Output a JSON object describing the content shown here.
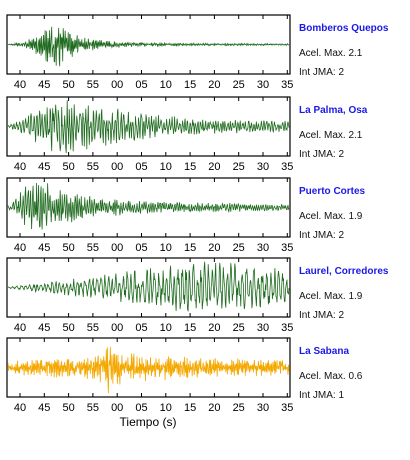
{
  "figure": {
    "xlabel": "Tiempo (s)"
  },
  "chart_data": [
    {
      "type": "line",
      "station": "Bomberos Quepos",
      "accel_label": "Acel. Max. 2.1",
      "intensity_label": "Int JMA: 2",
      "color": "#1f6b1f",
      "x_ticks": [
        "40",
        "45",
        "50",
        "55",
        "00",
        "05",
        "10",
        "15",
        "20",
        "25",
        "30",
        "35"
      ],
      "envelope_x": [
        0,
        3,
        5,
        7,
        9,
        12,
        14,
        16,
        20,
        25,
        30,
        40,
        55
      ],
      "envelope_y": [
        0.01,
        0.08,
        0.25,
        0.55,
        0.9,
        0.55,
        0.35,
        0.22,
        0.12,
        0.08,
        0.06,
        0.04,
        0.03
      ],
      "seed": 11,
      "period": 0.35
    },
    {
      "type": "line",
      "station": "La Palma, Osa",
      "accel_label": "Acel. Max. 2.1",
      "intensity_label": "Int JMA: 2",
      "color": "#1f6b1f",
      "x_ticks": [
        "40",
        "45",
        "50",
        "55",
        "00",
        "05",
        "10",
        "15",
        "20",
        "25",
        "30",
        "35"
      ],
      "envelope_x": [
        0,
        3,
        6,
        9,
        12,
        16,
        20,
        25,
        30,
        35,
        40,
        48,
        55
      ],
      "envelope_y": [
        0.05,
        0.3,
        0.6,
        0.85,
        0.95,
        0.8,
        0.65,
        0.5,
        0.4,
        0.3,
        0.25,
        0.22,
        0.2
      ],
      "seed": 23,
      "period": 0.55
    },
    {
      "type": "line",
      "station": "Puerto Cortes",
      "accel_label": "Acel. Max. 1.9",
      "intensity_label": "Int JMA: 2",
      "color": "#1f6b1f",
      "x_ticks": [
        "40",
        "45",
        "50",
        "55",
        "00",
        "05",
        "10",
        "15",
        "20",
        "25",
        "30",
        "35"
      ],
      "envelope_x": [
        0,
        2,
        4,
        6,
        8,
        10,
        14,
        18,
        22,
        28,
        35,
        45,
        55
      ],
      "envelope_y": [
        0.1,
        0.4,
        0.95,
        0.9,
        0.8,
        0.6,
        0.45,
        0.35,
        0.28,
        0.22,
        0.18,
        0.15,
        0.12
      ],
      "seed": 37,
      "period": 0.45
    },
    {
      "type": "line",
      "station": "Laurel, Corredores",
      "accel_label": "Acel. Max. 1.9",
      "intensity_label": "Int JMA: 2",
      "color": "#1f6b1f",
      "x_ticks": [
        "40",
        "45",
        "50",
        "55",
        "00",
        "05",
        "10",
        "15",
        "20",
        "25",
        "30",
        "35"
      ],
      "envelope_x": [
        0,
        4,
        8,
        12,
        16,
        20,
        25,
        30,
        35,
        40,
        45,
        50,
        55
      ],
      "envelope_y": [
        0.02,
        0.12,
        0.2,
        0.28,
        0.35,
        0.45,
        0.6,
        0.75,
        0.85,
        0.9,
        0.85,
        0.8,
        0.6
      ],
      "seed": 53,
      "period": 0.8
    },
    {
      "type": "line",
      "station": "La Sabana",
      "accel_label": "Acel. Max. 0.6",
      "intensity_label": "Int JMA: 1",
      "color": "#f5a800",
      "x_ticks": [
        "40",
        "45",
        "50",
        "55",
        "00",
        "05",
        "10",
        "15",
        "20",
        "25",
        "30",
        "35"
      ],
      "envelope_x": [
        0,
        5,
        10,
        15,
        18,
        20,
        22,
        25,
        30,
        35,
        40,
        48,
        55
      ],
      "envelope_y": [
        0.2,
        0.3,
        0.35,
        0.4,
        0.5,
        0.95,
        0.6,
        0.5,
        0.45,
        0.4,
        0.35,
        0.3,
        0.28
      ],
      "seed": 71,
      "period": 0.3
    }
  ]
}
